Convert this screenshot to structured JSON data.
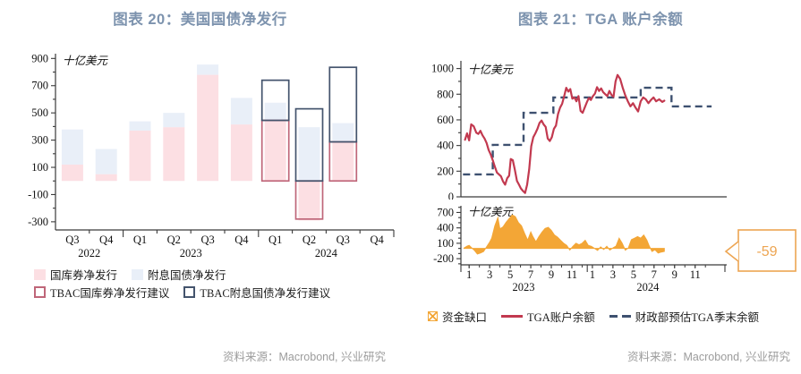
{
  "panels": {
    "left": {
      "title": "图表 20：美国国债净发行",
      "source": "资料来源：Macrobond, 兴业研究"
    },
    "right": {
      "title": "图表 21：TGA 账户余额",
      "source": "资料来源：Macrobond, 兴业研究"
    }
  },
  "colors": {
    "title": "#7d93ae",
    "axis": "#3a3a3a",
    "axis_text": "#111111",
    "source_text": "#9c9c9c",
    "bill_fill": "#fcdfe3",
    "coupon_fill": "#e9eff8",
    "tbac_bill_outline": "#bf6679",
    "tbac_coupon_outline": "#44546d",
    "tga_line": "#c2394f",
    "estimate_dash": "#3e5170",
    "gap_area": "#f3a636",
    "callout": "#eda552"
  },
  "chart_data": [
    {
      "id": "us-treasury-net-issuance",
      "type": "bar",
      "title": "图表 20：美国国债净发行",
      "unit": "十亿美元",
      "ylim": [
        -360,
        935
      ],
      "yticks": [
        -300,
        -100,
        100,
        300,
        500,
        700,
        900
      ],
      "ytick_minor_step": 100,
      "grid": false,
      "legend_position": "bottom-left",
      "categories": [
        "Q3",
        "Q4",
        "Q1",
        "Q2",
        "Q3",
        "Q4",
        "Q1",
        "Q2",
        "Q3",
        "Q4"
      ],
      "year_groups": [
        {
          "label": "2022",
          "from": 0,
          "to": 1
        },
        {
          "label": "2023",
          "from": 2,
          "to": 5
        },
        {
          "label": "2024",
          "from": 6,
          "to": 9
        }
      ],
      "series": [
        {
          "name": "国库券净发行",
          "style": "fill",
          "stack": false,
          "color": "#fcdfe3",
          "values": [
            120,
            50,
            370,
            395,
            780,
            415,
            440,
            -290,
            285,
            null
          ]
        },
        {
          "name": "附息国债净发行",
          "style": "fill",
          "stack": true,
          "color": "#e9eff8",
          "values": [
            258,
            185,
            68,
            105,
            75,
            195,
            135,
            395,
            140,
            null
          ]
        },
        {
          "name": "TBAC国库券净发行建议",
          "style": "outline",
          "stack": false,
          "color": "#bf6679",
          "values": [
            null,
            null,
            null,
            null,
            null,
            null,
            445,
            -280,
            287,
            null
          ]
        },
        {
          "name": "TBAC附息国债净发行建议",
          "style": "outline",
          "stack": true,
          "color": "#44546d",
          "values": [
            null,
            null,
            null,
            null,
            null,
            null,
            295,
            530,
            548,
            null
          ]
        }
      ]
    },
    {
      "id": "tga-balance",
      "type": "line",
      "title": "图表 21：TGA 账户余额",
      "unit": "十亿美元",
      "ylim": [
        0,
        1060
      ],
      "yticks": [
        0,
        200,
        400,
        600,
        800,
        1000
      ],
      "ytick_minor_step": 100,
      "grid": false,
      "xlim": [
        0.2,
        25.9
      ],
      "x_encoding": "month index: 1 = 2023-01, 13 = 2024-01",
      "series": [
        {
          "name": "TGA账户余额",
          "style": "line",
          "color": "#c2394f",
          "points": [
            [
              0.6,
              445
            ],
            [
              0.8,
              495
            ],
            [
              1.0,
              440
            ],
            [
              1.2,
              565
            ],
            [
              1.45,
              550
            ],
            [
              1.7,
              500
            ],
            [
              1.9,
              490
            ],
            [
              2.1,
              515
            ],
            [
              2.3,
              480
            ],
            [
              2.5,
              455
            ],
            [
              2.7,
              420
            ],
            [
              2.9,
              365
            ],
            [
              3.1,
              330
            ],
            [
              3.3,
              285
            ],
            [
              3.5,
              235
            ],
            [
              3.7,
              190
            ],
            [
              3.9,
              175
            ],
            [
              4.1,
              160
            ],
            [
              4.3,
              120
            ],
            [
              4.5,
              95
            ],
            [
              4.7,
              145
            ],
            [
              4.9,
              165
            ],
            [
              5.05,
              295
            ],
            [
              5.25,
              285
            ],
            [
              5.45,
              210
            ],
            [
              5.65,
              125
            ],
            [
              5.85,
              95
            ],
            [
              6.05,
              65
            ],
            [
              6.25,
              45
            ],
            [
              6.45,
              30
            ],
            [
              6.65,
              95
            ],
            [
              6.85,
              215
            ],
            [
              7.05,
              395
            ],
            [
              7.25,
              465
            ],
            [
              7.45,
              495
            ],
            [
              7.65,
              530
            ],
            [
              7.85,
              575
            ],
            [
              8.05,
              595
            ],
            [
              8.25,
              565
            ],
            [
              8.45,
              545
            ],
            [
              8.65,
              455
            ],
            [
              8.85,
              435
            ],
            [
              9.05,
              465
            ],
            [
              9.25,
              530
            ],
            [
              9.45,
              555
            ],
            [
              9.65,
              645
            ],
            [
              9.85,
              695
            ],
            [
              10.05,
              725
            ],
            [
              10.25,
              785
            ],
            [
              10.45,
              850
            ],
            [
              10.65,
              820
            ],
            [
              10.85,
              840
            ],
            [
              11.05,
              765
            ],
            [
              11.25,
              775
            ],
            [
              11.45,
              745
            ],
            [
              11.65,
              785
            ],
            [
              11.85,
              670
            ],
            [
              12.05,
              655
            ],
            [
              12.25,
              695
            ],
            [
              12.45,
              735
            ],
            [
              12.65,
              770
            ],
            [
              12.85,
              755
            ],
            [
              13.05,
              785
            ],
            [
              13.25,
              805
            ],
            [
              13.45,
              855
            ],
            [
              13.65,
              825
            ],
            [
              13.85,
              845
            ],
            [
              14.05,
              815
            ],
            [
              14.25,
              800
            ],
            [
              14.45,
              785
            ],
            [
              14.65,
              825
            ],
            [
              14.85,
              795
            ],
            [
              15.05,
              780
            ],
            [
              15.25,
              900
            ],
            [
              15.45,
              950
            ],
            [
              15.7,
              920
            ],
            [
              15.95,
              850
            ],
            [
              16.2,
              790
            ],
            [
              16.45,
              745
            ],
            [
              16.7,
              705
            ],
            [
              16.95,
              730
            ],
            [
              17.2,
              695
            ],
            [
              17.45,
              665
            ],
            [
              17.7,
              745
            ],
            [
              17.95,
              775
            ],
            [
              18.2,
              760
            ],
            [
              18.45,
              730
            ],
            [
              18.7,
              755
            ],
            [
              18.95,
              775
            ],
            [
              19.2,
              745
            ],
            [
              19.5,
              760
            ],
            [
              19.8,
              740
            ],
            [
              20.0,
              750
            ]
          ]
        },
        {
          "name": "财政部预估TGA季末余额",
          "style": "dashed-step",
          "color": "#3e5170",
          "points": [
            [
              0.4,
              175
            ],
            [
              3.3,
              175
            ],
            [
              3.3,
              405
            ],
            [
              6.3,
              405
            ],
            [
              6.3,
              655
            ],
            [
              9.2,
              655
            ],
            [
              9.2,
              775
            ],
            [
              17.7,
              775
            ],
            [
              17.7,
              850
            ],
            [
              20.7,
              850
            ],
            [
              20.7,
              705
            ],
            [
              24.6,
              705
            ]
          ]
        }
      ]
    },
    {
      "id": "funding-gap",
      "type": "area",
      "unit": "十亿美元",
      "ylim": [
        -320,
        830
      ],
      "yticks": [
        -200,
        100,
        400,
        700
      ],
      "ytick_minor_step": 100,
      "grid": false,
      "xlim": [
        0.2,
        25.9
      ],
      "xticks": [
        {
          "m": 1,
          "label": "1"
        },
        {
          "m": 3,
          "label": "3"
        },
        {
          "m": 5,
          "label": "5"
        },
        {
          "m": 7,
          "label": "7"
        },
        {
          "m": 9,
          "label": "9"
        },
        {
          "m": 11,
          "label": "11"
        },
        {
          "m": 13,
          "label": "1"
        },
        {
          "m": 15,
          "label": "3"
        },
        {
          "m": 17,
          "label": "5"
        },
        {
          "m": 19,
          "label": "7"
        },
        {
          "m": 21,
          "label": "9"
        },
        {
          "m": 23,
          "label": "11"
        }
      ],
      "year_ticks": [
        {
          "m": 6.3,
          "label": "2023"
        },
        {
          "m": 18.4,
          "label": "2024"
        }
      ],
      "series": [
        {
          "name": "资金缺口",
          "style": "area",
          "color": "#f3a636",
          "points": [
            [
              0.5,
              5
            ],
            [
              0.8,
              45
            ],
            [
              1.0,
              60
            ],
            [
              1.2,
              20
            ],
            [
              1.5,
              -35
            ],
            [
              1.8,
              -110
            ],
            [
              2.1,
              -90
            ],
            [
              2.4,
              -60
            ],
            [
              2.7,
              30
            ],
            [
              3.0,
              120
            ],
            [
              3.2,
              200
            ],
            [
              3.5,
              440
            ],
            [
              3.8,
              600
            ],
            [
              4.0,
              380
            ],
            [
              4.3,
              420
            ],
            [
              4.6,
              510
            ],
            [
              4.9,
              580
            ],
            [
              5.2,
              650
            ],
            [
              5.5,
              620
            ],
            [
              5.8,
              500
            ],
            [
              6.1,
              440
            ],
            [
              6.4,
              290
            ],
            [
              6.7,
              160
            ],
            [
              7.0,
              320
            ],
            [
              7.2,
              230
            ],
            [
              7.5,
              130
            ],
            [
              7.8,
              230
            ],
            [
              8.1,
              320
            ],
            [
              8.4,
              390
            ],
            [
              8.7,
              410
            ],
            [
              9.0,
              350
            ],
            [
              9.3,
              260
            ],
            [
              9.6,
              220
            ],
            [
              9.9,
              160
            ],
            [
              10.2,
              100
            ],
            [
              10.5,
              60
            ],
            [
              10.8,
              -30
            ],
            [
              11.1,
              40
            ],
            [
              11.4,
              100
            ],
            [
              11.7,
              70
            ],
            [
              12.0,
              100
            ],
            [
              12.3,
              160
            ],
            [
              12.6,
              60
            ],
            [
              12.9,
              40
            ],
            [
              13.2,
              0
            ],
            [
              13.5,
              -40
            ],
            [
              13.8,
              30
            ],
            [
              14.1,
              -20
            ],
            [
              14.4,
              40
            ],
            [
              14.7,
              -30
            ],
            [
              15.0,
              10
            ],
            [
              15.3,
              45
            ],
            [
              15.6,
              200
            ],
            [
              15.9,
              100
            ],
            [
              16.2,
              -35
            ],
            [
              16.5,
              10
            ],
            [
              16.8,
              170
            ],
            [
              17.1,
              200
            ],
            [
              17.4,
              230
            ],
            [
              17.7,
              200
            ],
            [
              18.0,
              260
            ],
            [
              18.3,
              160
            ],
            [
              18.5,
              60
            ],
            [
              18.8,
              -60
            ],
            [
              19.1,
              -25
            ],
            [
              19.4,
              -90
            ],
            [
              19.7,
              -70
            ],
            [
              20.0,
              -59
            ]
          ]
        }
      ],
      "annotation": {
        "label": "-59",
        "color": "#eda552"
      }
    }
  ]
}
